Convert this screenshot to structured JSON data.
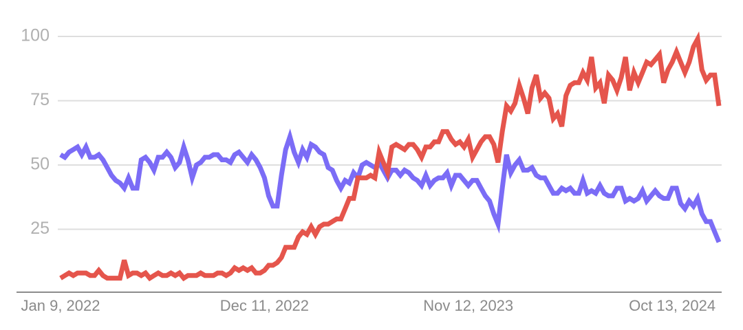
{
  "chart_data": {
    "type": "line",
    "categories": [
      "Jan 9, 2022",
      null,
      null,
      null,
      null,
      null,
      null,
      null,
      null,
      null,
      null,
      null,
      null,
      null,
      null,
      null,
      null,
      null,
      null,
      null,
      null,
      null,
      null,
      null,
      null,
      null,
      null,
      null,
      null,
      null,
      null,
      null,
      null,
      null,
      null,
      null,
      null,
      null,
      null,
      null,
      null,
      null,
      null,
      null,
      null,
      null,
      null,
      null,
      "Dec 11, 2022",
      null,
      null,
      null,
      null,
      null,
      null,
      null,
      null,
      null,
      null,
      null,
      null,
      null,
      null,
      null,
      null,
      null,
      null,
      null,
      null,
      null,
      null,
      null,
      null,
      null,
      null,
      null,
      null,
      null,
      null,
      null,
      null,
      null,
      null,
      null,
      null,
      null,
      null,
      null,
      null,
      null,
      null,
      null,
      null,
      null,
      null,
      null,
      "Nov 12, 2023",
      null,
      null,
      null,
      null,
      null,
      null,
      null,
      null,
      null,
      null,
      null,
      null,
      null,
      null,
      null,
      null,
      null,
      null,
      null,
      null,
      null,
      null,
      null,
      null,
      null,
      null,
      null,
      null,
      null,
      null,
      null,
      null,
      null,
      null,
      null,
      null,
      null,
      null,
      null,
      null,
      null,
      null,
      null,
      null,
      null,
      null,
      null,
      "Oct 13, 2024",
      null,
      null,
      null,
      null,
      null,
      null,
      null,
      null,
      null,
      null,
      null
    ],
    "series": [
      {
        "color": "#7b6cf6",
        "values": [
          54,
          53,
          55,
          56,
          57,
          54,
          57,
          53,
          53,
          54,
          52,
          49,
          46,
          44,
          43,
          41,
          45,
          41,
          41,
          52,
          53,
          51,
          48,
          53,
          53,
          55,
          53,
          49,
          51,
          57,
          52,
          45,
          50,
          51,
          53,
          53,
          54,
          54,
          52,
          52,
          51,
          54,
          55,
          53,
          51,
          54,
          52,
          49,
          45,
          38,
          34,
          34,
          46,
          56,
          61,
          55,
          51,
          56,
          53,
          58,
          57,
          55,
          54,
          49,
          48,
          44,
          41,
          44,
          43,
          47,
          45,
          50,
          51,
          50,
          49,
          51,
          48,
          45,
          48,
          48,
          46,
          48,
          47,
          45,
          44,
          42,
          46,
          42,
          44,
          45,
          45,
          47,
          42,
          46,
          46,
          44,
          42,
          44,
          44,
          41,
          38,
          36,
          31,
          27,
          41,
          54,
          47,
          50,
          52,
          48,
          48,
          49,
          46,
          45,
          45,
          42,
          39,
          39,
          41,
          40,
          41,
          39,
          39,
          44,
          39,
          40,
          39,
          42,
          39,
          38,
          38,
          41,
          41,
          36,
          37,
          36,
          37,
          40,
          36,
          38,
          40,
          38,
          37,
          37,
          41,
          41,
          35,
          33,
          36,
          34,
          37,
          31,
          28,
          28,
          24,
          20
        ]
      },
      {
        "color": "#e5554c",
        "values": [
          6,
          7,
          8,
          7,
          8,
          8,
          8,
          7,
          7,
          9,
          7,
          6,
          6,
          6,
          6,
          13,
          7,
          8,
          8,
          7,
          8,
          6,
          7,
          8,
          7,
          7,
          8,
          7,
          8,
          6,
          7,
          7,
          7,
          8,
          7,
          7,
          7,
          8,
          8,
          7,
          8,
          10,
          9,
          10,
          9,
          10,
          8,
          8,
          9,
          11,
          11,
          12,
          14,
          18,
          18,
          18,
          22,
          24,
          23,
          26,
          23,
          26,
          27,
          27,
          28,
          29,
          29,
          33,
          37,
          37,
          45,
          45,
          45,
          46,
          45,
          55,
          51,
          47,
          57,
          58,
          57,
          56,
          58,
          58,
          56,
          53,
          57,
          57,
          59,
          59,
          63,
          63,
          60,
          58,
          59,
          57,
          60,
          53,
          56,
          59,
          61,
          61,
          58,
          51,
          63,
          73,
          71,
          74,
          81,
          76,
          70,
          80,
          85,
          76,
          78,
          76,
          68,
          70,
          65,
          77,
          81,
          82,
          82,
          86,
          83,
          92,
          80,
          82,
          74,
          85,
          83,
          79,
          84,
          92,
          79,
          86,
          82,
          86,
          90,
          89,
          91,
          93,
          82,
          87,
          90,
          94,
          90,
          86,
          90,
          96,
          99,
          87,
          83,
          85,
          85,
          73
        ]
      }
    ],
    "ylim": [
      0,
      100
    ],
    "yticks": [
      25,
      50,
      75,
      100
    ],
    "grid": true
  }
}
